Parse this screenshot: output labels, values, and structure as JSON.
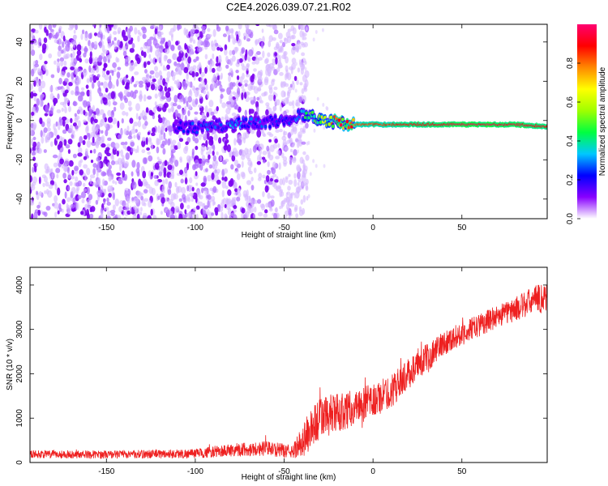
{
  "title": "C2E4.2026.039.07.21.R02",
  "chart_data": [
    {
      "type": "heatmap",
      "name": "spectrogram",
      "xlabel": "Height of straight line (km)",
      "ylabel": "Frequency (Hz)",
      "xlim": [
        -193,
        98
      ],
      "ylim": [
        -50,
        49
      ],
      "xticks": [
        -150,
        -100,
        -50,
        0,
        50
      ],
      "yticks": [
        -40,
        -20,
        0,
        20,
        40
      ],
      "colorbar": {
        "label": "Normalized spectral amplitude",
        "range": [
          0,
          1
        ],
        "ticks": [
          "0.0",
          "0.2",
          "0.4",
          "0.6",
          "0.8"
        ],
        "tick_values": [
          0.0,
          0.2,
          0.4,
          0.6,
          0.8
        ],
        "colors": [
          "#ffffff",
          "#8800ff",
          "#0000ff",
          "#00c8ff",
          "#00ff40",
          "#a0ff00",
          "#ffff00",
          "#ff8800",
          "#ff0000",
          "#ff0070"
        ]
      },
      "signal_track": {
        "description_points_x": [
          -112,
          -100,
          -80,
          -60,
          -50,
          -40,
          -30,
          -20,
          -10,
          0,
          10,
          20,
          50,
          80,
          98
        ],
        "frequency_hz": [
          -3,
          -4,
          -2,
          -1,
          0,
          3,
          1,
          -1,
          -2,
          -2,
          -2,
          -2,
          -2,
          -2,
          -3
        ],
        "amplitude": [
          0.15,
          0.2,
          0.25,
          0.2,
          0.2,
          0.35,
          0.5,
          0.65,
          0.8,
          0.85,
          0.85,
          0.9,
          0.95,
          0.95,
          0.9
        ]
      },
      "noise_region_x": [
        -193,
        -45
      ]
    },
    {
      "type": "line",
      "name": "snr",
      "xlabel": "Height of straight line (km)",
      "ylabel": "SNR (10 * v/v)",
      "xlim": [
        -193,
        98
      ],
      "ylim": [
        0,
        4400
      ],
      "xticks": [
        -150,
        -100,
        -50,
        0,
        50
      ],
      "yticks": [
        0,
        1000,
        2000,
        3000,
        4000
      ],
      "color": "#ee2020",
      "trend_x": [
        -193,
        -150,
        -100,
        -80,
        -60,
        -45,
        -38,
        -30,
        -20,
        -10,
        0,
        10,
        20,
        30,
        40,
        50,
        60,
        70,
        80,
        90,
        98
      ],
      "trend_y": [
        190,
        180,
        200,
        280,
        320,
        240,
        580,
        1000,
        1100,
        1250,
        1380,
        1600,
        2000,
        2350,
        2700,
        2900,
        3100,
        3300,
        3450,
        3650,
        3750
      ],
      "noise_amplitude": [
        90,
        90,
        110,
        150,
        170,
        150,
        450,
        500,
        450,
        400,
        400,
        380,
        340,
        320,
        280,
        260,
        260,
        260,
        280,
        320,
        380
      ]
    }
  ]
}
